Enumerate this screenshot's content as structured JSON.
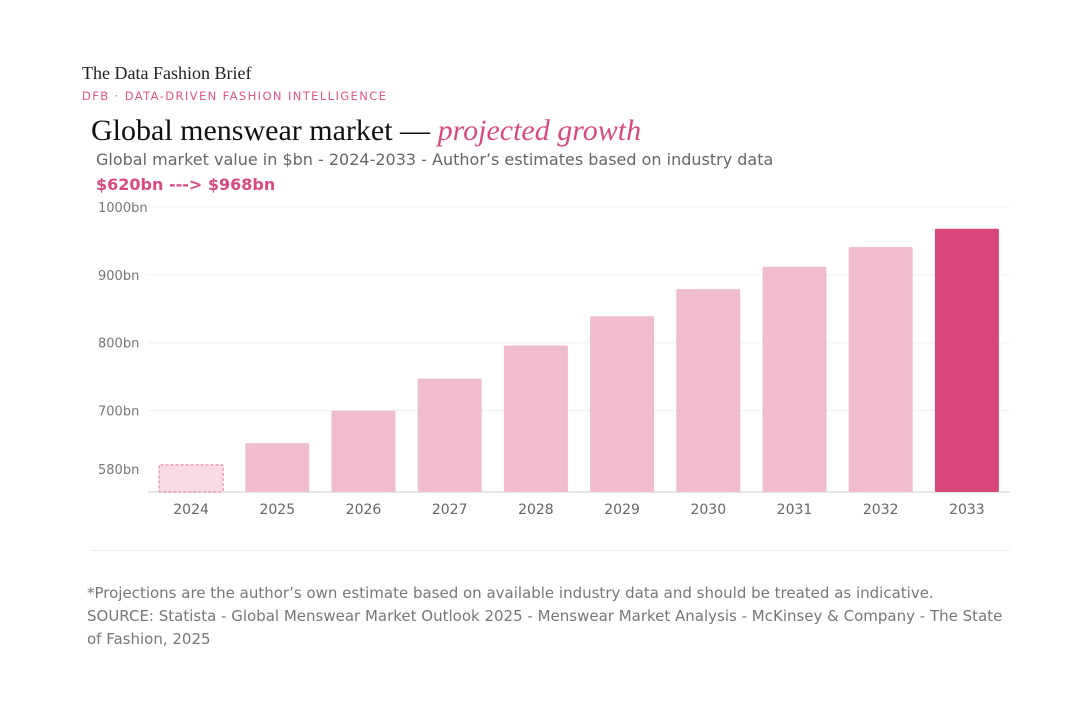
{
  "header": {
    "brand": "The Data Fashion Brief",
    "tagline": "DFB · DATA-DRIVEN FASHION INTELLIGENCE"
  },
  "chart_data": {
    "type": "bar",
    "title": "Global menswear market — ",
    "title_emphasis": "projected growth",
    "subtitle": "Global market value in $bn - 2024-2033 - Author’s estimates based on industry data",
    "highlight": "$620bn ---> $968bn",
    "categories": [
      "2024",
      "2025",
      "2026",
      "2027",
      "2028",
      "2029",
      "2030",
      "2031",
      "2032",
      "2033"
    ],
    "values": [
      620,
      652,
      700,
      747,
      796,
      839,
      879,
      912,
      941,
      968
    ],
    "ylim": [
      580,
      1000
    ],
    "yticks": [
      580,
      700,
      800,
      900,
      1000
    ],
    "ytick_labels": [
      "580bn",
      "700bn",
      "800bn",
      "900bn",
      "1000bn"
    ],
    "grid": true,
    "colors": {
      "base": "#f0bcd0",
      "first": "#f8dbe5",
      "first_border": "#e68aaa",
      "last": "#d8467c"
    }
  },
  "footer": {
    "note": "*Projections are the author’s own estimate based on available industry data and should be treated as indicative.",
    "source": "SOURCE: Statista - Global Menswear Market Outlook 2025 - Menswear Market Analysis - McKinsey & Company - The State of Fashion, 2025"
  }
}
